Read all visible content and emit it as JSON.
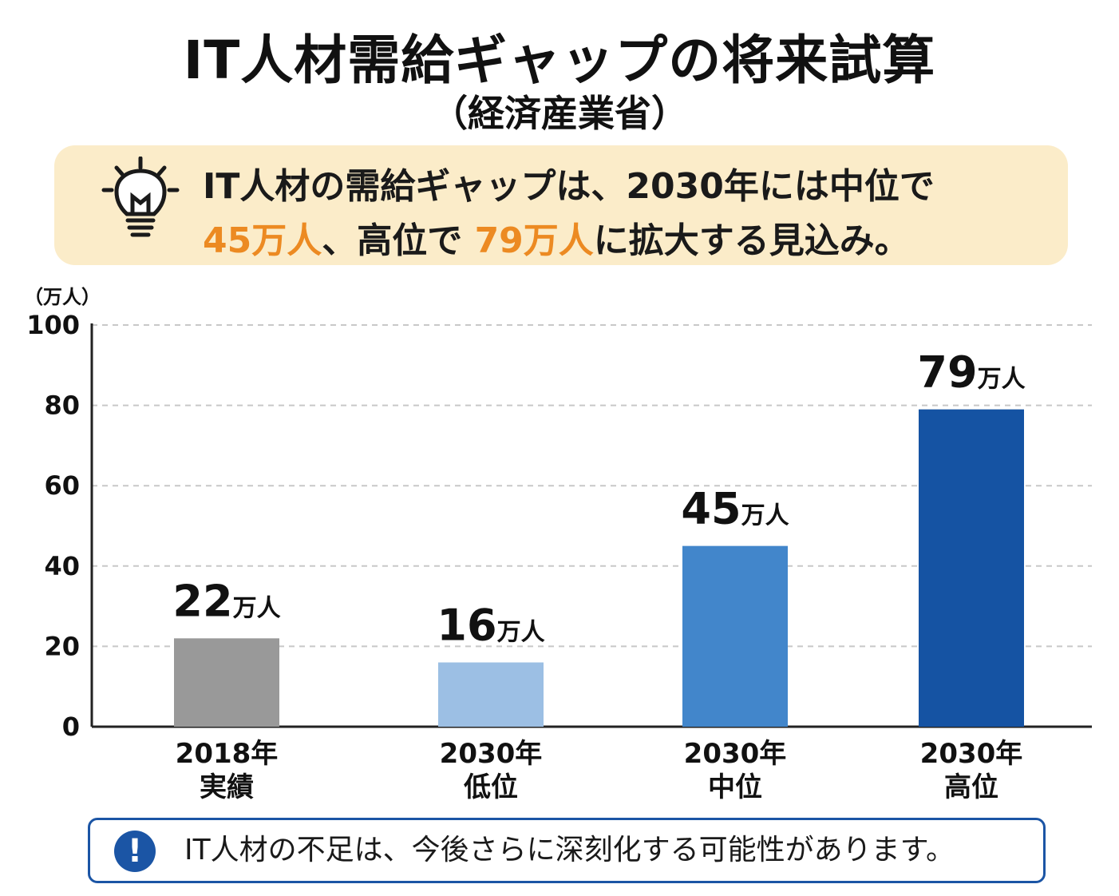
{
  "title": "IT人材需給ギャップの将来試算",
  "subtitle": "（経済産業省）",
  "callout": {
    "icon": "lightbulb-icon",
    "line1": "IT人材の需給ギャップは、2030年には中位で",
    "line2_part1": "45万人",
    "line2_part2": "、高位で",
    "line2_part3": "79万人",
    "line2_part4": "に拡大する見込み。",
    "highlight_color": "#ec8a22",
    "background": "#fbecc9"
  },
  "chart_data": {
    "type": "bar",
    "ylabel": "（万人）",
    "ylim": [
      0,
      100
    ],
    "yticks": [
      "0",
      "20",
      "40",
      "60",
      "80",
      "100"
    ],
    "grid": true,
    "categories": [
      {
        "line1": "2018年",
        "line2": "実績"
      },
      {
        "line1": "2030年",
        "line2": "低位"
      },
      {
        "line1": "2030年",
        "line2": "中位"
      },
      {
        "line1": "2030年",
        "line2": "高位"
      }
    ],
    "values": [
      22,
      16,
      45,
      79
    ],
    "value_labels": [
      {
        "num": "22",
        "unit": "万人"
      },
      {
        "num": "16",
        "unit": "万人"
      },
      {
        "num": "45",
        "unit": "万人"
      },
      {
        "num": "79",
        "unit": "万人"
      }
    ],
    "colors": [
      "#999999",
      "#9cbfe4",
      "#4286cb",
      "#1553a3"
    ]
  },
  "note": {
    "icon": "exclamation-icon",
    "icon_glyph": "!",
    "text": "IT人材の不足は、今後さらに深刻化する可能性があります。",
    "border_color": "#1b55a5"
  }
}
